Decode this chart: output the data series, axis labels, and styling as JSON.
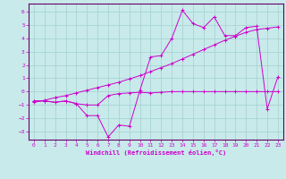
{
  "xlabel": "Windchill (Refroidissement éolien,°C)",
  "bg_color": "#c8eaea",
  "grid_color": "#a8d4d4",
  "line_color": "#cc00cc",
  "spine_color": "#660066",
  "xlim": [
    -0.5,
    23.5
  ],
  "ylim": [
    -3.6,
    6.6
  ],
  "xticks": [
    0,
    1,
    2,
    3,
    4,
    5,
    6,
    7,
    8,
    9,
    10,
    11,
    12,
    13,
    14,
    15,
    16,
    17,
    18,
    19,
    20,
    21,
    22,
    23
  ],
  "yticks": [
    -3,
    -2,
    -1,
    0,
    1,
    2,
    3,
    4,
    5,
    6
  ],
  "series1_x": [
    0,
    1,
    2,
    3,
    4,
    5,
    6,
    7,
    8,
    9,
    10,
    11,
    12,
    13,
    14,
    15,
    16,
    17,
    18,
    19,
    20,
    21,
    22,
    23
  ],
  "series1_y": [
    -0.7,
    -0.7,
    -0.8,
    -0.7,
    -0.9,
    -1.0,
    -1.0,
    -0.3,
    -0.15,
    -0.1,
    -0.05,
    -0.1,
    -0.05,
    0.0,
    0.0,
    0.0,
    0.0,
    0.0,
    0.0,
    0.0,
    0.0,
    0.0,
    0.0,
    0.0
  ],
  "series2_x": [
    0,
    1,
    2,
    3,
    4,
    5,
    6,
    7,
    8,
    9,
    10,
    11,
    12,
    13,
    14,
    15,
    16,
    17,
    18,
    19,
    20,
    21,
    22,
    23
  ],
  "series2_y": [
    -0.7,
    -0.7,
    -0.8,
    -0.7,
    -0.9,
    -1.8,
    -1.8,
    -3.4,
    -2.5,
    -2.6,
    0.1,
    2.6,
    2.7,
    4.0,
    6.1,
    5.1,
    4.8,
    5.6,
    4.2,
    4.2,
    4.8,
    4.9,
    -1.3,
    1.1
  ],
  "series3_x": [
    0,
    1,
    2,
    3,
    4,
    5,
    6,
    7,
    8,
    9,
    10,
    11,
    12,
    13,
    14,
    15,
    16,
    17,
    18,
    19,
    20,
    21,
    22,
    23
  ],
  "series3_y": [
    -0.8,
    -0.65,
    -0.45,
    -0.3,
    -0.1,
    0.1,
    0.3,
    0.5,
    0.7,
    0.95,
    1.2,
    1.5,
    1.8,
    2.1,
    2.45,
    2.8,
    3.15,
    3.5,
    3.85,
    4.15,
    4.45,
    4.65,
    4.75,
    4.85
  ]
}
